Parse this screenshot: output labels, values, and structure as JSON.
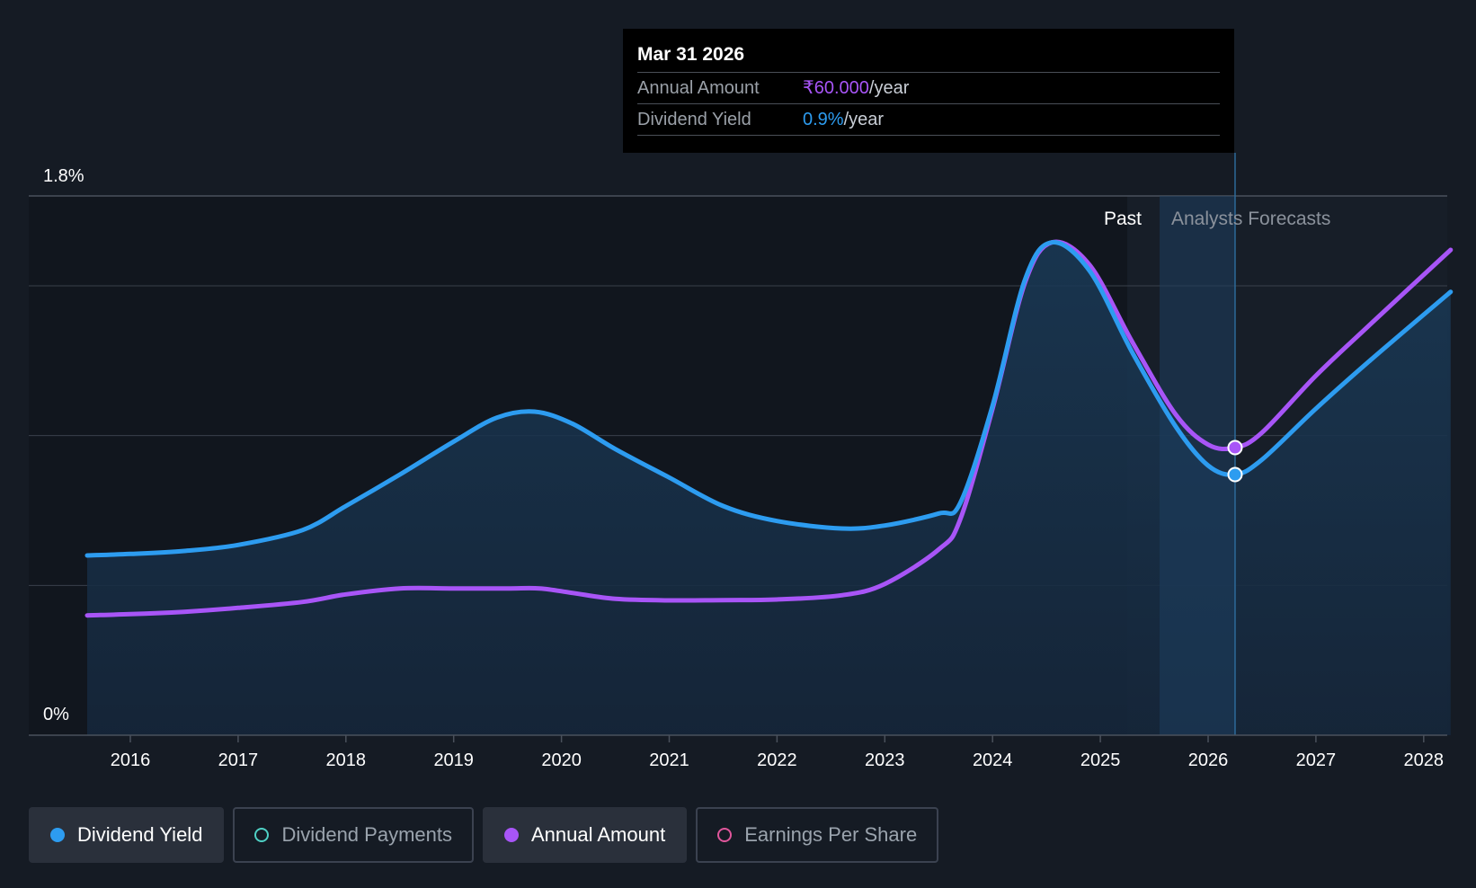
{
  "tooltip": {
    "date": "Mar 31 2026",
    "annual_label": "Annual Amount",
    "annual_value": "₹60.000",
    "annual_unit": "/year",
    "yield_label": "Dividend Yield",
    "yield_value": "0.9%",
    "yield_unit": "/year"
  },
  "labels": {
    "past": "Past",
    "forecast": "Analysts Forecasts"
  },
  "legend": [
    {
      "label": "Dividend Yield",
      "color": "#2d9cf0",
      "active": true,
      "filled": true
    },
    {
      "label": "Dividend Payments",
      "color": "#4fd1c5",
      "active": false,
      "filled": false
    },
    {
      "label": "Annual Amount",
      "color": "#a855f7",
      "active": true,
      "filled": true
    },
    {
      "label": "Earnings Per Share",
      "color": "#e0569b",
      "active": false,
      "filled": false
    }
  ],
  "colors": {
    "background": "#151b24",
    "yield": "#2d9cf0",
    "annual": "#a855f7",
    "grid": "#39404b"
  },
  "chart_data": {
    "type": "line",
    "yaxis_labels": [
      "1.8%",
      "0%"
    ],
    "ylim": [
      0,
      1.8
    ],
    "xlim": [
      2015.3,
      2028.25
    ],
    "x_ticks": [
      "2016",
      "2017",
      "2018",
      "2019",
      "2020",
      "2021",
      "2022",
      "2023",
      "2024",
      "2025",
      "2026",
      "2027",
      "2028"
    ],
    "past_end": 2025.25,
    "forecast_start": 2025.55,
    "highlight_x": 2026.25,
    "series": [
      {
        "name": "Dividend Yield",
        "points": [
          [
            2015.6,
            0.6
          ],
          [
            2016.0,
            0.605
          ],
          [
            2016.5,
            0.615
          ],
          [
            2017.0,
            0.635
          ],
          [
            2017.6,
            0.685
          ],
          [
            2018.0,
            0.765
          ],
          [
            2018.5,
            0.87
          ],
          [
            2019.0,
            0.98
          ],
          [
            2019.4,
            1.06
          ],
          [
            2019.75,
            1.08
          ],
          [
            2020.1,
            1.04
          ],
          [
            2020.5,
            0.955
          ],
          [
            2021.0,
            0.86
          ],
          [
            2021.5,
            0.765
          ],
          [
            2022.0,
            0.715
          ],
          [
            2022.6,
            0.69
          ],
          [
            2023.0,
            0.7
          ],
          [
            2023.5,
            0.74
          ],
          [
            2023.7,
            0.775
          ],
          [
            2024.0,
            1.1
          ],
          [
            2024.3,
            1.52
          ],
          [
            2024.55,
            1.645
          ],
          [
            2024.9,
            1.55
          ],
          [
            2025.3,
            1.275
          ],
          [
            2025.7,
            1.03
          ],
          [
            2026.0,
            0.9
          ],
          [
            2026.25,
            0.87
          ],
          [
            2026.5,
            0.92
          ],
          [
            2027.0,
            1.09
          ],
          [
            2027.5,
            1.25
          ],
          [
            2028.25,
            1.48
          ]
        ]
      },
      {
        "name": "Annual Amount",
        "points": [
          [
            2015.6,
            0.4
          ],
          [
            2016.0,
            0.404
          ],
          [
            2016.5,
            0.412
          ],
          [
            2017.0,
            0.425
          ],
          [
            2017.6,
            0.445
          ],
          [
            2018.0,
            0.47
          ],
          [
            2018.5,
            0.49
          ],
          [
            2019.0,
            0.49
          ],
          [
            2019.5,
            0.49
          ],
          [
            2019.8,
            0.49
          ],
          [
            2020.1,
            0.475
          ],
          [
            2020.5,
            0.455
          ],
          [
            2021.0,
            0.45
          ],
          [
            2021.5,
            0.451
          ],
          [
            2022.0,
            0.453
          ],
          [
            2022.6,
            0.467
          ],
          [
            2023.0,
            0.505
          ],
          [
            2023.5,
            0.62
          ],
          [
            2023.7,
            0.72
          ],
          [
            2024.0,
            1.09
          ],
          [
            2024.3,
            1.51
          ],
          [
            2024.55,
            1.645
          ],
          [
            2024.9,
            1.57
          ],
          [
            2025.3,
            1.31
          ],
          [
            2025.7,
            1.07
          ],
          [
            2026.0,
            0.97
          ],
          [
            2026.25,
            0.96
          ],
          [
            2026.5,
            1.01
          ],
          [
            2027.0,
            1.2
          ],
          [
            2027.5,
            1.37
          ],
          [
            2028.25,
            1.62
          ]
        ]
      }
    ]
  }
}
